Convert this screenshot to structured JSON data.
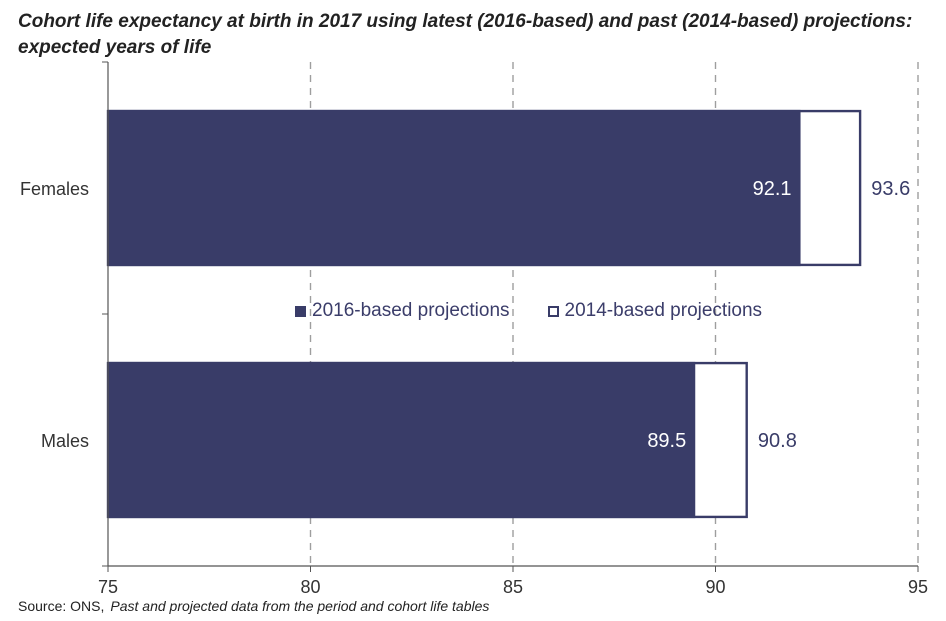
{
  "title": "Cohort life expectancy at birth in 2017 using latest (2016-based) and past (2014-based) projections: expected years of life",
  "source": {
    "label": "Source: ONS,",
    "reference": "Past and projected data from the period and cohort life tables"
  },
  "colors": {
    "series_2016": "#393c68",
    "series_2014_fill": "#ffffff",
    "series_2014_border": "#393c68",
    "grid": "#9e9e9e",
    "axis": "#555555"
  },
  "chart_data": {
    "type": "bar",
    "orientation": "horizontal",
    "categories": [
      "Females",
      "Males"
    ],
    "series": [
      {
        "name": "2016-based projections",
        "values": [
          92.1,
          89.5
        ]
      },
      {
        "name": "2014-based projections",
        "values": [
          93.6,
          90.8
        ]
      }
    ],
    "xlim": [
      75,
      95
    ],
    "xticks": [
      "75",
      "80",
      "85",
      "90",
      "95"
    ],
    "grid": "vertical dashed",
    "legend": "center",
    "data_labels": [
      {
        "category": "Females",
        "series": "2016-based projections",
        "text": "92.1"
      },
      {
        "category": "Females",
        "series": "2014-based projections",
        "text": "93.6"
      },
      {
        "category": "Males",
        "series": "2016-based projections",
        "text": "89.5"
      },
      {
        "category": "Males",
        "series": "2014-based projections",
        "text": "90.8"
      }
    ]
  }
}
